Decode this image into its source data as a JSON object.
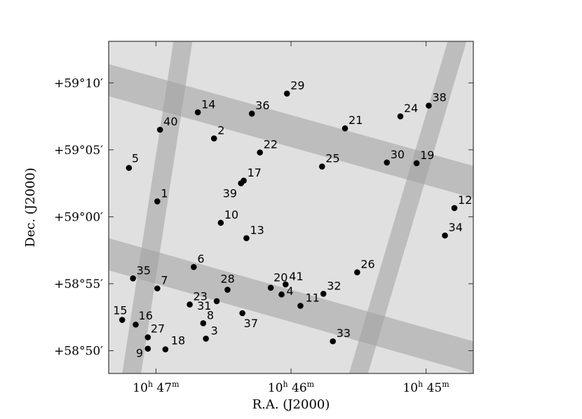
{
  "chart_data": {
    "type": "scatter",
    "xlabel": "R.A. (J2000)",
    "ylabel": "Dec. (J2000)",
    "x_ticks": [
      {
        "ra_min": 47,
        "hours": "10",
        "minutes": "47"
      },
      {
        "ra_min": 46,
        "hours": "10",
        "minutes": "46"
      },
      {
        "ra_min": 45,
        "hours": "10",
        "minutes": "45"
      }
    ],
    "y_ticks": [
      {
        "dec_arcmin": 10,
        "label": "+59°10′"
      },
      {
        "dec_arcmin": 5,
        "label": "+59°05′"
      },
      {
        "dec_arcmin": 0,
        "label": "+59°00′"
      },
      {
        "dec_arcmin": -5,
        "label": "+58°55′"
      },
      {
        "dec_arcmin": -10,
        "label": "+58°50′"
      }
    ],
    "xlim_ra_min": [
      47.35,
      44.65
    ],
    "ylim_dec_arcmin": [
      -11.7,
      13.1
    ],
    "x_axis_direction": "R.A. increases to the left",
    "grid": false,
    "background_color": "#e0e0e0",
    "strip_color": "#a0a0a0",
    "point_color": "#000000",
    "strips": [
      {
        "description": "upper horizontal band",
        "ra_min": [
          47.35,
          44.65
        ],
        "dec_center_arcmin": [
          10.2,
          2.6
        ],
        "width_arcmin": 2.4
      },
      {
        "description": "lower horizontal band",
        "ra_min": [
          47.35,
          44.65
        ],
        "dec_center_arcmin": [
          -2.8,
          -10.5
        ],
        "width_arcmin": 2.4
      },
      {
        "description": "left vertical band",
        "dec_arcmin": [
          -11.7,
          13.1
        ],
        "ra_min_center": [
          47.18,
          46.8
        ],
        "width_ra_min": 0.14
      },
      {
        "description": "right vertical band",
        "dec_arcmin": [
          -11.7,
          13.1
        ],
        "ra_min_center": [
          45.5,
          44.77
        ],
        "width_ra_min": 0.14
      }
    ],
    "points": [
      {
        "label": "1",
        "ra_min": 46.99,
        "dec_arcmin": 1.15
      },
      {
        "label": "2",
        "ra_min": 46.57,
        "dec_arcmin": 5.85
      },
      {
        "label": "3",
        "ra_min": 46.63,
        "dec_arcmin": -9.1
      },
      {
        "label": "4",
        "ra_min": 46.07,
        "dec_arcmin": -5.8
      },
      {
        "label": "5",
        "ra_min": 47.2,
        "dec_arcmin": 3.65
      },
      {
        "label": "6",
        "ra_min": 46.72,
        "dec_arcmin": -3.75
      },
      {
        "label": "7",
        "ra_min": 46.99,
        "dec_arcmin": -5.35
      },
      {
        "label": "8",
        "ra_min": 46.65,
        "dec_arcmin": -7.95
      },
      {
        "label": "9",
        "ra_min": 47.06,
        "dec_arcmin": -9.85
      },
      {
        "label": "10",
        "ra_min": 46.52,
        "dec_arcmin": -0.45
      },
      {
        "label": "11",
        "ra_min": 45.93,
        "dec_arcmin": -6.65
      },
      {
        "label": "12",
        "ra_min": 44.79,
        "dec_arcmin": 0.65
      },
      {
        "label": "13",
        "ra_min": 46.33,
        "dec_arcmin": -1.6
      },
      {
        "label": "14",
        "ra_min": 46.69,
        "dec_arcmin": 7.8
      },
      {
        "label": "15",
        "ra_min": 47.25,
        "dec_arcmin": -7.7
      },
      {
        "label": "16",
        "ra_min": 47.15,
        "dec_arcmin": -8.05
      },
      {
        "label": "17",
        "ra_min": 46.35,
        "dec_arcmin": 2.7
      },
      {
        "label": "18",
        "ra_min": 46.93,
        "dec_arcmin": -9.9
      },
      {
        "label": "19",
        "ra_min": 45.07,
        "dec_arcmin": 4.0
      },
      {
        "label": "20",
        "ra_min": 46.15,
        "dec_arcmin": -5.3
      },
      {
        "label": "21",
        "ra_min": 45.6,
        "dec_arcmin": 6.6
      },
      {
        "label": "22",
        "ra_min": 46.23,
        "dec_arcmin": 4.8
      },
      {
        "label": "23",
        "ra_min": 46.75,
        "dec_arcmin": -6.55
      },
      {
        "label": "24",
        "ra_min": 45.19,
        "dec_arcmin": 7.5
      },
      {
        "label": "25",
        "ra_min": 45.77,
        "dec_arcmin": 3.75
      },
      {
        "label": "26",
        "ra_min": 45.51,
        "dec_arcmin": -4.15
      },
      {
        "label": "27",
        "ra_min": 47.06,
        "dec_arcmin": -9.0
      },
      {
        "label": "28",
        "ra_min": 46.47,
        "dec_arcmin": -5.45
      },
      {
        "label": "29",
        "ra_min": 46.03,
        "dec_arcmin": 9.2
      },
      {
        "label": "30",
        "ra_min": 45.29,
        "dec_arcmin": 4.05
      },
      {
        "label": "31",
        "ra_min": 46.55,
        "dec_arcmin": -6.3
      },
      {
        "label": "32",
        "ra_min": 45.76,
        "dec_arcmin": -5.75
      },
      {
        "label": "33",
        "ra_min": 45.69,
        "dec_arcmin": -9.3
      },
      {
        "label": "34",
        "ra_min": 44.86,
        "dec_arcmin": -1.4
      },
      {
        "label": "35",
        "ra_min": 47.17,
        "dec_arcmin": -4.6
      },
      {
        "label": "36",
        "ra_min": 46.29,
        "dec_arcmin": 7.7
      },
      {
        "label": "37",
        "ra_min": 46.36,
        "dec_arcmin": -7.2
      },
      {
        "label": "38",
        "ra_min": 44.98,
        "dec_arcmin": 8.3
      },
      {
        "label": "39",
        "ra_min": 46.37,
        "dec_arcmin": 2.5
      },
      {
        "label": "40",
        "ra_min": 46.97,
        "dec_arcmin": 6.5
      },
      {
        "label": "41",
        "ra_min": 46.04,
        "dec_arcmin": -5.05
      }
    ]
  }
}
